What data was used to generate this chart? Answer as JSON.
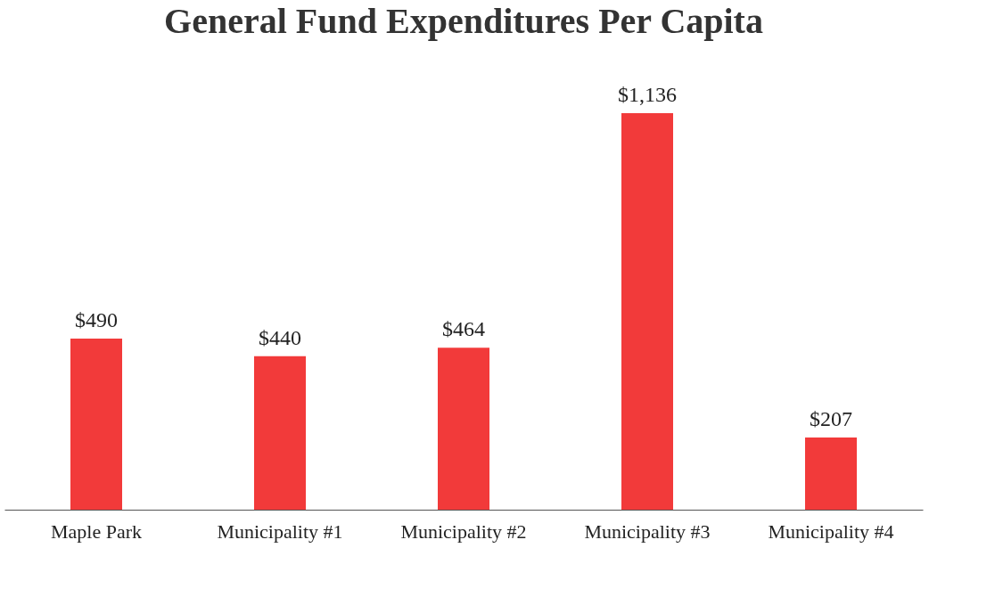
{
  "chart_data": {
    "type": "bar",
    "title": "General Fund Expenditures Per Capita",
    "categories": [
      "Maple Park",
      "Municipality #1",
      "Municipality #2",
      "Municipality #3",
      "Municipality #4"
    ],
    "values": [
      490,
      440,
      464,
      1136,
      207
    ],
    "value_labels": [
      "$490",
      "$440",
      "$464",
      "$1,136",
      "$207"
    ],
    "color": "#f23a3a",
    "grid": false
  }
}
